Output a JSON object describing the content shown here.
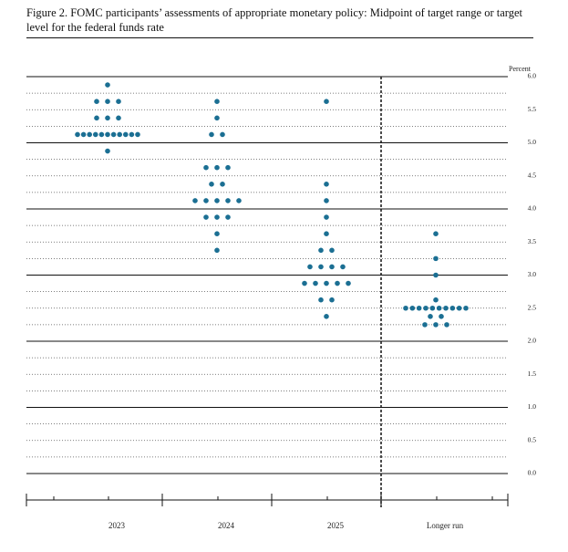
{
  "chart_data": {
    "type": "dot",
    "title": "Figure 2.  FOMC participants’ assessments of appropriate monetary policy: Midpoint of target range or target level for the federal funds rate",
    "y_label": "Percent",
    "categories": [
      "2023",
      "2024",
      "2025",
      "Longer run"
    ],
    "values": [
      [
        5.875,
        5.625,
        5.625,
        5.625,
        5.375,
        5.375,
        5.375,
        5.125,
        5.125,
        5.125,
        5.125,
        5.125,
        5.125,
        5.125,
        5.125,
        5.125,
        5.125,
        5.125,
        4.875
      ],
      [
        5.625,
        5.375,
        5.125,
        5.125,
        4.625,
        4.625,
        4.625,
        4.375,
        4.375,
        4.125,
        4.125,
        4.125,
        4.125,
        4.125,
        3.875,
        3.875,
        3.875,
        3.625,
        3.375
      ],
      [
        5.625,
        4.375,
        4.125,
        3.875,
        3.625,
        3.375,
        3.375,
        3.125,
        3.125,
        3.125,
        3.125,
        2.875,
        2.875,
        2.875,
        2.875,
        2.875,
        2.625,
        2.625,
        2.375
      ],
      [
        3.625,
        3.25,
        3,
        2.625,
        2.5,
        2.5,
        2.5,
        2.5,
        2.5,
        2.5,
        2.5,
        2.5,
        2.5,
        2.5,
        2.375,
        2.375,
        2.25,
        2.25,
        2.25
      ]
    ],
    "color": "#1b6f93",
    "ylim": [
      0,
      6
    ],
    "yticks": [
      {
        "value": 0,
        "label": "0.0"
      },
      0.5,
      {
        "value": 1,
        "label": "1.0"
      },
      1.5,
      {
        "value": 2,
        "label": "2.0"
      },
      2.5,
      {
        "value": 3,
        "label": "3.0"
      },
      3.5,
      {
        "value": 4,
        "label": "4.0"
      },
      4.5,
      {
        "value": 5,
        "label": "5.0"
      },
      5.5,
      {
        "value": 6,
        "label": "6.0"
      }
    ],
    "ygrid": [
      0,
      0.25,
      0.5,
      0.75,
      1,
      1.25,
      1.5,
      1.75,
      2,
      2.25,
      2.5,
      2.75,
      3,
      3.25,
      3.5,
      3.75,
      4,
      4.25,
      4.5,
      4.75,
      5,
      5.25,
      5.5,
      5.75,
      6
    ]
  }
}
